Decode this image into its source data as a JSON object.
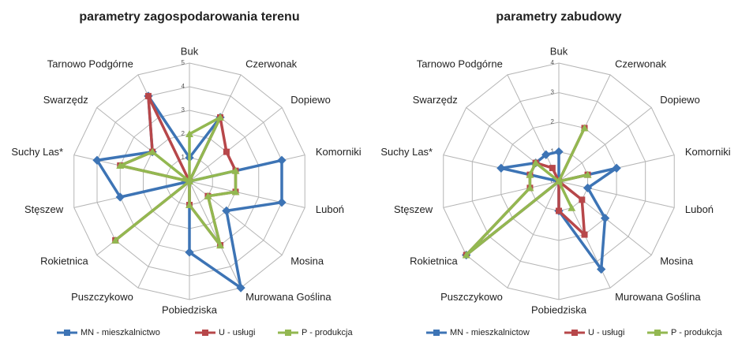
{
  "chart_data": [
    {
      "type": "radar",
      "title": "parametry zagospodarowania terenu",
      "categories": [
        "Buk",
        "Czerwonak",
        "Dopiewo",
        "Komorniki",
        "Luboń",
        "Mosina",
        "Murowana Goślina",
        "Pobiedziska",
        "Puszczykowo",
        "Rokietnica",
        "Stęszew",
        "Suchy Las*",
        "Swarzędz",
        "Tarnowo Podgórne"
      ],
      "ylim": [
        0,
        5
      ],
      "yticks": [
        0,
        1,
        2,
        3,
        4,
        5
      ],
      "grid": true,
      "series": [
        {
          "name": "MN - mieszkalnictwo",
          "color": "#3d74b5",
          "values": [
            1,
            3,
            0,
            4,
            4,
            2,
            5,
            3,
            0,
            0,
            3,
            4,
            2,
            4
          ]
        },
        {
          "name": "U - usługi",
          "color": "#b7474a",
          "values": [
            0,
            3,
            2,
            2,
            2,
            1,
            3,
            1,
            0,
            4,
            0,
            3,
            2,
            4
          ]
        },
        {
          "name": "P - produkcja",
          "color": "#93b851",
          "values": [
            2,
            3,
            0,
            2,
            2,
            1,
            3,
            1,
            0,
            4,
            0,
            3,
            2,
            0
          ]
        }
      ]
    },
    {
      "type": "radar",
      "title": "parametry zabudowy",
      "categories": [
        "Buk",
        "Czerwonak",
        "Dopiewo",
        "Komorniki",
        "Luboń",
        "Mosina",
        "Murowana Goślina",
        "Pobiedziska",
        "Puszczykowo",
        "Rokietnica",
        "Stęszew",
        "Suchy Las*",
        "Swarzędz",
        "Tarnowo Podgórne"
      ],
      "ylim": [
        0,
        4
      ],
      "yticks": [
        0,
        1,
        2,
        3,
        4
      ],
      "grid": true,
      "series": [
        {
          "name": "MN - mieszkalnictow",
          "color": "#3d74b5",
          "values": [
            1,
            0,
            0,
            2,
            1,
            2,
            3.3,
            1,
            0,
            4,
            0,
            2,
            1,
            1
          ]
        },
        {
          "name": "U - usługi",
          "color": "#b7474a",
          "values": [
            0,
            2,
            0,
            1,
            0,
            1,
            2,
            1,
            0,
            4,
            1,
            1,
            1,
            0.5
          ]
        },
        {
          "name": "P - produkcja",
          "color": "#93b851",
          "values": [
            0,
            2,
            0,
            1,
            0,
            0,
            1,
            0,
            0,
            4,
            1,
            1,
            1,
            0
          ]
        }
      ]
    }
  ]
}
